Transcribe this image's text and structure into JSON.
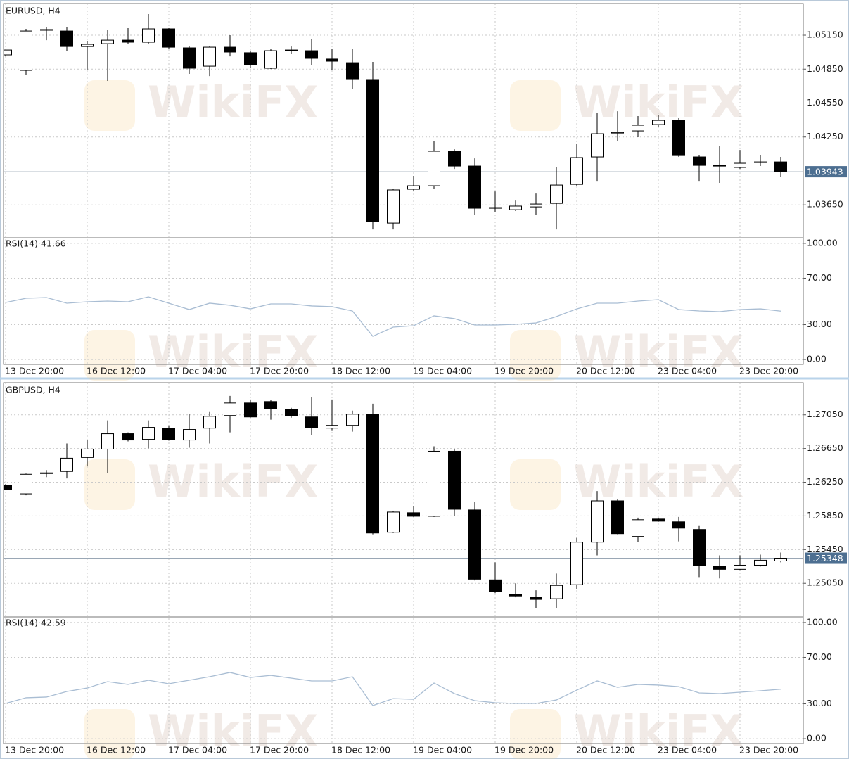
{
  "watermark": "WikiFX",
  "chart_data": [
    {
      "type": "candlestick",
      "title": "EURUSD, H4",
      "categories": [
        "13 Dec 20:00",
        null,
        null,
        null,
        "16 Dec 12:00",
        null,
        null,
        null,
        "17 Dec 04:00",
        null,
        null,
        null,
        "17 Dec 20:00",
        null,
        null,
        null,
        "18 Dec 12:00",
        null,
        null,
        null,
        "19 Dec 04:00",
        null,
        null,
        null,
        "19 Dec 20:00",
        null,
        null,
        null,
        "20 Dec 12:00",
        null,
        null,
        null,
        "23 Dec 04:00",
        null,
        null,
        null,
        "23 Dec 20:00",
        null,
        null
      ],
      "open": [
        1.04976,
        1.04839,
        1.05194,
        1.05187,
        1.0505,
        1.05075,
        1.05106,
        1.05088,
        1.05206,
        1.05038,
        1.04876,
        1.05044,
        1.04995,
        1.04858,
        1.05013,
        1.05013,
        1.04939,
        1.04907,
        1.04752,
        1.03489,
        1.03788,
        1.03819,
        1.04124,
        1.03993,
        1.03626,
        1.03607,
        1.03632,
        1.03663,
        1.03831,
        1.04074,
        1.04285,
        1.04304,
        1.0436,
        1.04397,
        1.04074,
        1.03999,
        1.03981,
        1.04024,
        1.0403
      ],
      "high": [
        1.05019,
        1.05206,
        1.05225,
        1.05225,
        1.051,
        1.052,
        1.05212,
        1.05337,
        1.05212,
        1.05057,
        1.05057,
        1.0515,
        1.05013,
        1.05026,
        1.0505,
        1.05119,
        1.05026,
        1.05026,
        1.04914,
        1.03794,
        1.03906,
        1.04217,
        1.04142,
        1.04061,
        1.03769,
        1.03688,
        1.0375,
        1.03987,
        1.04186,
        1.04466,
        1.04478,
        1.04435,
        1.04447,
        1.04416,
        1.04093,
        1.04173,
        1.04136,
        1.04093,
        1.04074
      ],
      "low": [
        1.04963,
        1.04802,
        1.05106,
        1.05013,
        1.04839,
        1.04746,
        1.05075,
        1.05075,
        1.05026,
        1.04808,
        1.04789,
        1.04963,
        1.04864,
        1.04851,
        1.04982,
        1.04889,
        1.04839,
        1.04677,
        1.03433,
        1.03433,
        1.03769,
        1.03794,
        1.03968,
        1.03558,
        1.03583,
        1.03595,
        1.03564,
        1.03433,
        1.03813,
        1.03856,
        1.04217,
        1.04248,
        1.04341,
        1.04074,
        1.03856,
        1.03844,
        1.03968,
        1.03993,
        1.03894
      ],
      "close": [
        1.05019,
        1.05187,
        1.052,
        1.0505,
        1.05069,
        1.05106,
        1.05088,
        1.05206,
        1.05044,
        1.04858,
        1.05044,
        1.05001,
        1.04889,
        1.05013,
        1.05019,
        1.04945,
        1.0492,
        1.04758,
        1.03502,
        1.03782,
        1.03819,
        1.04124,
        1.03993,
        1.0362,
        1.0362,
        1.03639,
        1.03657,
        1.03825,
        1.04068,
        1.04279,
        1.04292,
        1.04354,
        1.04397,
        1.04086,
        1.03999,
        1.03993,
        1.04018,
        1.0403,
        1.03943
      ],
      "bull_color": "#ffffff",
      "bear_color": "#000000",
      "ylim": [
        1.03359,
        1.0543
      ],
      "yticks": [
        {
          "value": 1.0515,
          "label": "1.05150"
        },
        {
          "value": 1.0485,
          "label": "1.04850"
        },
        {
          "value": 1.0455,
          "label": "1.04550"
        },
        {
          "value": 1.0425,
          "label": "1.04250"
        },
        {
          "value": 1.0365,
          "label": "1.03650"
        }
      ],
      "grid": true,
      "last_price": {
        "value": 1.03943,
        "label": "1.03943"
      },
      "rsi": {
        "label": "RSI(14) 41.66",
        "color": "#a9bdd3",
        "values": [
          49.1,
          52.7,
          53.3,
          48.5,
          49.7,
          50.3,
          49.7,
          53.9,
          48.5,
          43.0,
          48.5,
          46.7,
          43.6,
          47.9,
          47.9,
          46.1,
          45.5,
          41.8,
          20.0,
          27.9,
          29.1,
          37.6,
          35.2,
          29.7,
          29.7,
          30.3,
          31.5,
          37.0,
          43.6,
          48.5,
          48.5,
          50.3,
          51.5,
          43.0,
          41.8,
          41.2,
          43.0,
          43.6,
          41.66
        ],
        "ylim": [
          -4.2,
          104.8
        ],
        "yticks": [
          {
            "value": 100,
            "label": "100.00"
          },
          {
            "value": 70,
            "label": "70.00"
          },
          {
            "value": 30,
            "label": "30.00"
          },
          {
            "value": 0,
            "label": "0.00"
          }
        ]
      }
    },
    {
      "type": "candlestick",
      "title": "GBPUSD, H4",
      "categories": [
        "13 Dec 20:00",
        null,
        null,
        null,
        "16 Dec 12:00",
        null,
        null,
        null,
        "17 Dec 04:00",
        null,
        null,
        null,
        "17 Dec 20:00",
        null,
        null,
        null,
        "18 Dec 12:00",
        null,
        null,
        null,
        "19 Dec 04:00",
        null,
        null,
        null,
        "19 Dec 20:00",
        null,
        null,
        null,
        "20 Dec 12:00",
        null,
        null,
        null,
        "23 Dec 04:00",
        null,
        null,
        null,
        "23 Dec 20:00",
        null,
        null
      ],
      "open": [
        1.26212,
        1.26112,
        1.26353,
        1.26378,
        1.26544,
        1.26643,
        1.26826,
        1.26759,
        1.26892,
        1.26751,
        1.26892,
        1.27042,
        1.27191,
        1.27208,
        1.27116,
        1.27025,
        1.26892,
        1.26925,
        1.27058,
        1.25656,
        1.25888,
        1.25846,
        1.26618,
        1.25921,
        1.25091,
        1.24917,
        1.24884,
        1.24867,
        1.25033,
        1.25539,
        1.26029,
        1.25606,
        1.25813,
        1.2578,
        1.25689,
        1.25249,
        1.25216,
        1.25265,
        1.25315
      ],
      "high": [
        1.26228,
        1.26353,
        1.26394,
        1.2671,
        1.26751,
        1.26984,
        1.26842,
        1.26984,
        1.26925,
        1.27058,
        1.27092,
        1.27274,
        1.27233,
        1.27224,
        1.27133,
        1.27258,
        1.27233,
        1.271,
        1.27183,
        1.25905,
        1.25963,
        1.26676,
        1.26643,
        1.26021,
        1.25299,
        1.2505,
        1.24967,
        1.25166,
        1.25589,
        1.26145,
        1.26054,
        1.2583,
        1.2583,
        1.25838,
        1.2573,
        1.25382,
        1.25382,
        1.2539,
        1.25415
      ],
      "low": [
        1.26154,
        1.26095,
        1.26311,
        1.26295,
        1.26436,
        1.26361,
        1.26735,
        1.26652,
        1.26743,
        1.2666,
        1.2671,
        1.26842,
        1.27017,
        1.26992,
        1.27017,
        1.26809,
        1.26859,
        1.26851,
        1.25631,
        1.25647,
        1.25838,
        1.25838,
        1.25846,
        1.25083,
        1.24933,
        1.24884,
        1.24751,
        1.24759,
        1.24983,
        1.25382,
        1.25631,
        1.25539,
        1.2578,
        1.25548,
        1.25124,
        1.25108,
        1.25199,
        1.25249,
        1.25299
      ],
      "close": [
        1.26162,
        1.26344,
        1.26361,
        1.26535,
        1.26643,
        1.26826,
        1.26751,
        1.26901,
        1.26759,
        1.26876,
        1.27033,
        1.27191,
        1.27025,
        1.27125,
        1.27042,
        1.26901,
        1.26925,
        1.27058,
        1.25647,
        1.25896,
        1.25846,
        1.26618,
        1.25929,
        1.25099,
        1.2495,
        1.249,
        1.24859,
        1.25025,
        1.25539,
        1.26029,
        1.25639,
        1.25805,
        1.25788,
        1.25705,
        1.25257,
        1.25216,
        1.25265,
        1.25324,
        1.25348
      ],
      "bull_color": "#ffffff",
      "bear_color": "#000000",
      "ylim": [
        1.24651,
        1.27432
      ],
      "yticks": [
        {
          "value": 1.2705,
          "label": "1.27050"
        },
        {
          "value": 1.2665,
          "label": "1.26650"
        },
        {
          "value": 1.2625,
          "label": "1.26250"
        },
        {
          "value": 1.2585,
          "label": "1.25850"
        },
        {
          "value": 1.2545,
          "label": "1.25450"
        },
        {
          "value": 1.2505,
          "label": "1.25050"
        }
      ],
      "grid": true,
      "last_price": {
        "value": 1.25348,
        "label": "1.25348"
      },
      "rsi": {
        "label": "RSI(14) 42.59",
        "color": "#a9bdd3",
        "values": [
          30.3,
          35.2,
          35.8,
          40.6,
          43.6,
          49.1,
          46.7,
          50.3,
          47.3,
          50.3,
          53.3,
          57.0,
          52.7,
          54.5,
          52.1,
          49.7,
          49.7,
          53.3,
          28.5,
          34.5,
          33.9,
          47.9,
          38.8,
          32.7,
          30.9,
          30.3,
          30.3,
          33.3,
          41.8,
          49.7,
          44.2,
          46.7,
          46.1,
          44.8,
          39.4,
          38.8,
          40.0,
          41.2,
          42.59
        ],
        "ylim": [
          -4.2,
          104.8
        ],
        "yticks": [
          {
            "value": 100,
            "label": "100.00"
          },
          {
            "value": 70,
            "label": "70.00"
          },
          {
            "value": 30,
            "label": "30.00"
          },
          {
            "value": 0,
            "label": "0.00"
          }
        ]
      }
    }
  ]
}
